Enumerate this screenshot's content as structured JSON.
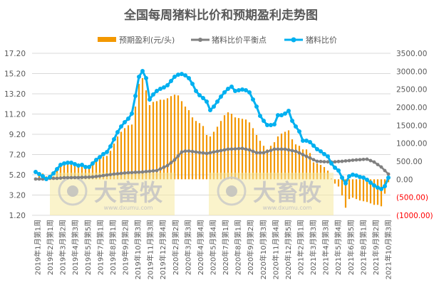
{
  "chart_data": {
    "type": "bar+line",
    "title": "全国每周猪料比价和预期盈利走势图",
    "legend_position": "top",
    "grid": true,
    "watermark": {
      "brand": "大畜牧",
      "url": "www.dxumu.com"
    },
    "left_axis": {
      "ylim": [
        1.2,
        17.2
      ],
      "ticks": [
        "17.20",
        "15.20",
        "13.20",
        "11.20",
        "9.20",
        "7.20",
        "5.20",
        "3.20",
        "1.20"
      ]
    },
    "right_axis": {
      "ylim": [
        -1000,
        3500
      ],
      "ticks": [
        "3500.00",
        "3000.00",
        "2500.00",
        "2000.00",
        "1500.00",
        "1000.00",
        "500.00",
        "0.00",
        "(500.00)",
        "(1000.00)"
      ],
      "negative_color": "#ff0000"
    },
    "x_tick_labels": [
      "2019年1月第1周",
      "2019年2月第1周",
      "2019年3月第2周",
      "2019年4月第3周",
      "2019年5月第5周",
      "2019年7月第1周",
      "2019年8月第1周",
      "2019年9月第2周",
      "2019年10月第3周",
      "2019年11月第3周",
      "2019年12月第4周",
      "2020年2月第2周",
      "2020年3月第3周",
      "2020年4月第4周",
      "2020年5月第4周",
      "2020年7月第1周",
      "2020年8月第1周",
      "2020年9月第2周",
      "2020年10月第3周",
      "2020年11月第4周",
      "2020年12月第5周",
      "2021年2月第1周",
      "2021年3月第3周",
      "2021年4月第3周",
      "2021年5月第4周",
      "2021年6月第5周",
      "2021年8月第1周",
      "2021年9月第2周",
      "2021年10月第3周"
    ],
    "series": [
      {
        "name": "预期盈利(元/头)",
        "type": "bar",
        "axis": "right",
        "color": "#f39800",
        "values": [
          40,
          140,
          160,
          80,
          40,
          80,
          240,
          400,
          440,
          450,
          470,
          450,
          440,
          400,
          340,
          320,
          400,
          510,
          590,
          630,
          650,
          790,
          990,
          1190,
          1320,
          1420,
          1500,
          1520,
          2020,
          2650,
          2810,
          2470,
          2060,
          2150,
          2170,
          2210,
          2210,
          2250,
          2310,
          2350,
          2330,
          2170,
          2020,
          1920,
          1720,
          1620,
          1560,
          1480,
          1230,
          1190,
          1320,
          1460,
          1620,
          1780,
          1860,
          1820,
          1720,
          1700,
          1680,
          1660,
          1580,
          1420,
          1230,
          1070,
          930,
          830,
          930,
          1030,
          1190,
          1270,
          1320,
          1360,
          1110,
          970,
          930,
          830,
          830,
          730,
          470,
          440,
          400,
          340,
          240,
          20,
          -120,
          -200,
          -450,
          -790,
          -550,
          -510,
          -550,
          -590,
          -610,
          -630,
          -670,
          -710,
          -710,
          -750,
          -400,
          -80
        ]
      },
      {
        "name": "猪料比价平衡点",
        "type": "line",
        "axis": "left",
        "color": "#808080",
        "values": [
          4.78,
          4.78,
          4.78,
          4.81,
          4.85,
          4.85,
          4.85,
          4.88,
          4.92,
          4.92,
          4.92,
          4.93,
          4.93,
          4.95,
          4.96,
          4.97,
          4.99,
          5.03,
          5.07,
          5.13,
          5.18,
          5.22,
          5.27,
          5.3,
          5.34,
          5.38,
          5.41,
          5.42,
          5.45,
          5.46,
          5.48,
          5.52,
          5.55,
          5.59,
          5.62,
          5.78,
          5.95,
          6.11,
          6.39,
          6.67,
          7.06,
          7.45,
          7.54,
          7.55,
          7.5,
          7.45,
          7.4,
          7.36,
          7.31,
          7.38,
          7.45,
          7.52,
          7.59,
          7.66,
          7.73,
          7.74,
          7.76,
          7.78,
          7.8,
          7.73,
          7.66,
          7.52,
          7.38,
          7.38,
          7.38,
          7.5,
          7.61,
          7.73,
          7.73,
          7.73,
          7.73,
          7.66,
          7.59,
          7.52,
          7.36,
          7.19,
          7.02,
          6.86,
          6.69,
          6.53,
          6.51,
          6.49,
          6.48,
          6.46,
          6.48,
          6.51,
          6.53,
          6.57,
          6.6,
          6.64,
          6.67,
          6.69,
          6.72,
          6.74,
          6.6,
          6.46,
          6.21,
          5.97,
          5.62,
          5.27
        ]
      },
      {
        "name": "猪料比价",
        "type": "line",
        "axis": "left",
        "color": "#00b0f0",
        "values": [
          5.48,
          5.27,
          5.06,
          4.78,
          4.99,
          5.34,
          5.76,
          6.18,
          6.32,
          6.39,
          6.39,
          6.25,
          6.11,
          6.18,
          5.97,
          5.97,
          6.32,
          6.67,
          6.95,
          7.24,
          7.45,
          8.01,
          8.71,
          9.41,
          9.97,
          10.39,
          10.74,
          11.24,
          12.99,
          14.88,
          15.45,
          14.74,
          12.64,
          13.13,
          13.48,
          13.69,
          13.83,
          14.04,
          14.46,
          14.88,
          15.09,
          15.16,
          15.02,
          14.74,
          14.18,
          13.48,
          13.06,
          12.78,
          12.43,
          11.59,
          11.94,
          12.43,
          12.92,
          13.34,
          13.69,
          13.9,
          13.48,
          13.55,
          13.62,
          13.55,
          13.34,
          12.64,
          11.94,
          11.02,
          10.53,
          10.11,
          10.11,
          10.18,
          11.09,
          11.09,
          11.24,
          11.52,
          10.53,
          9.97,
          9.48,
          8.57,
          8.57,
          8.43,
          8.08,
          7.73,
          7.52,
          7.24,
          7.02,
          6.32,
          5.9,
          5.62,
          4.92,
          4.36,
          5.06,
          5.21,
          5.13,
          4.99,
          4.92,
          4.71,
          4.43,
          4.15,
          3.94,
          3.8,
          4.08,
          4.92
        ]
      }
    ]
  }
}
